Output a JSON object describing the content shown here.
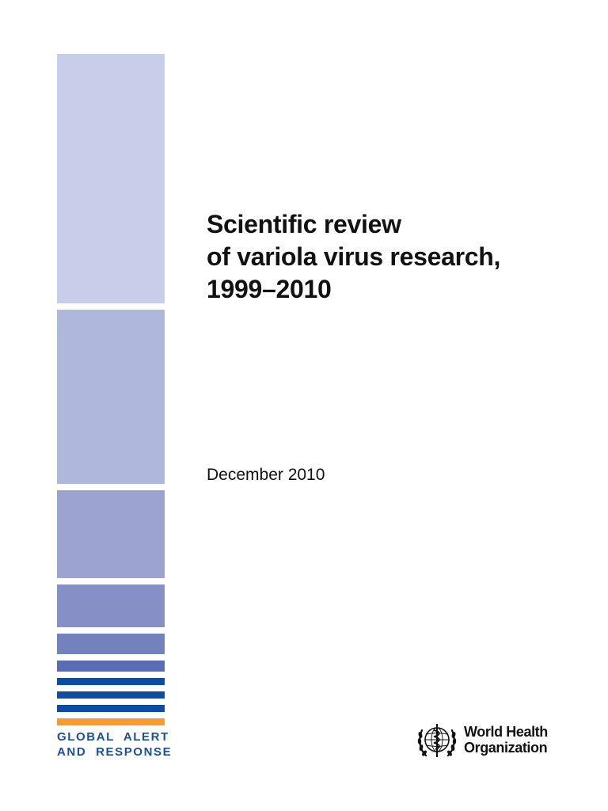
{
  "document": {
    "title_lines": [
      "Scientific review",
      "of variola virus research,",
      "1999–2010"
    ],
    "date": "December 2010"
  },
  "sidebar": {
    "program_label_lines": [
      "GLOBAL ALERT",
      "AND RESPONSE"
    ]
  },
  "publisher": {
    "logo_text_lines": [
      "World Health",
      "Organization"
    ]
  },
  "colors": {
    "bar_1": "#c8cdea",
    "bar_2": "#b0b7dd",
    "bar_3": "#9ca3d1",
    "bar_4": "#8690c6",
    "bar_5": "#7381bd",
    "bar_6": "#5a6cb3",
    "stripe_blue": "#0d4ca1",
    "stripe_orange": "#f79a2f",
    "label_blue": "#1a4f9c"
  }
}
